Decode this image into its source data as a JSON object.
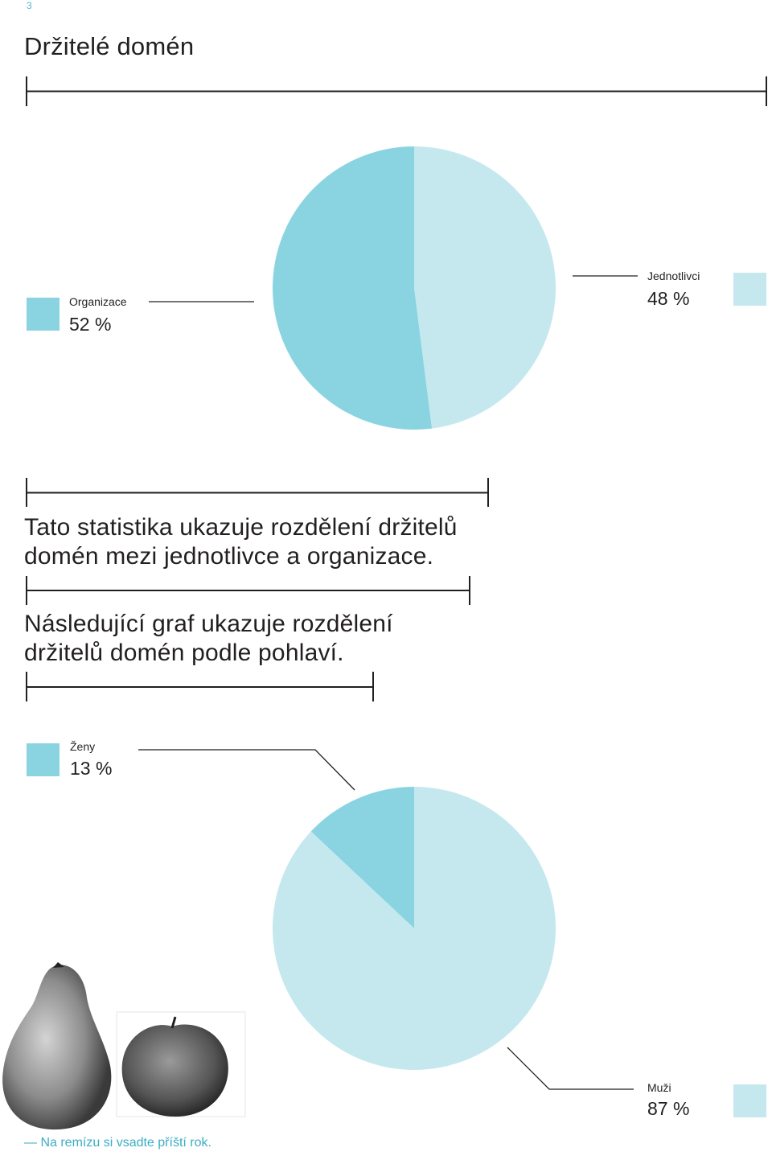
{
  "page_number": "3",
  "title": "Držitelé domén",
  "paragraph1": [
    "Tato statistika ukazuje rozdělení držitelů",
    "domén mezi jednotlivce a organizace."
  ],
  "paragraph2": [
    "Následující graf ukazuje rozdělení",
    "držitelů domén podle pohlaví."
  ],
  "footer": "— Na remízu si vsadte příští rok.",
  "colors": {
    "dark_teal": "#8ad4e2",
    "light_teal": "#c5e8ef",
    "line": "#231f20",
    "accent_text": "#3aaec4"
  },
  "chart_data": [
    {
      "type": "pie",
      "slices": [
        {
          "label": "Organizace",
          "value": 52,
          "display": "52 %",
          "color": "#8ad4e2"
        },
        {
          "label": "Jednotlivci",
          "value": 48,
          "display": "48 %",
          "color": "#c5e8ef"
        }
      ]
    },
    {
      "type": "pie",
      "slices": [
        {
          "label": "Ženy",
          "value": 13,
          "display": "13 %",
          "color": "#8ad4e2"
        },
        {
          "label": "Muži",
          "value": 87,
          "display": "87 %",
          "color": "#c5e8ef"
        }
      ]
    }
  ]
}
